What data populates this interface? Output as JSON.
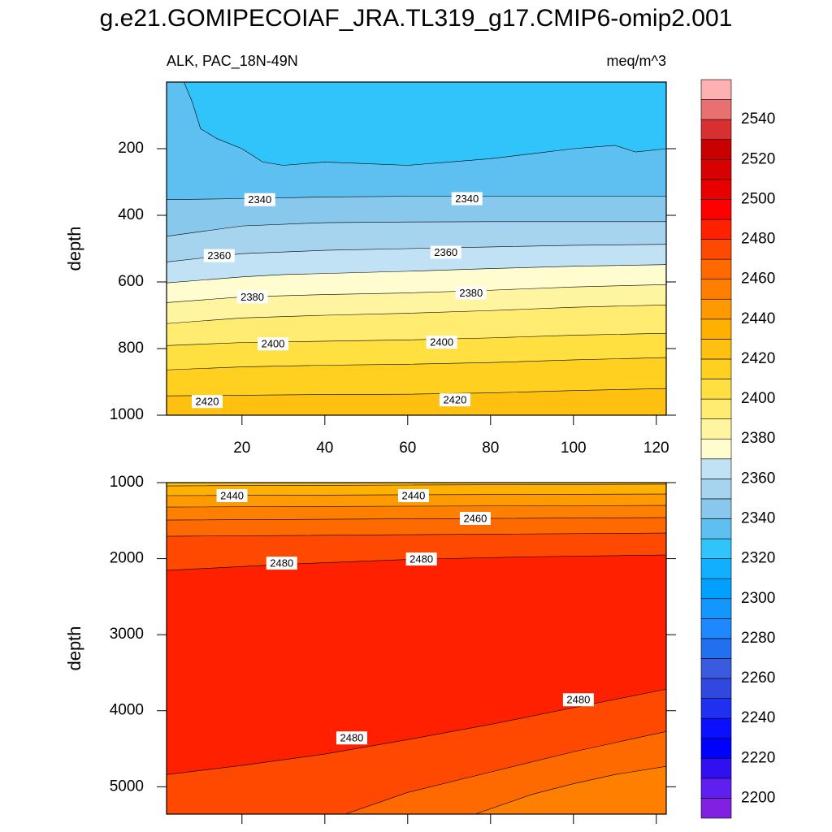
{
  "chart_data": [
    {
      "type": "contour",
      "title": "g.e21.GOMIPECOIAF_JRA.TL319_g17.CMIP6-omip2.001",
      "left_subtitle": "ALK, PAC_18N-49N",
      "right_subtitle": "meq/m^3",
      "y_label": "depth",
      "xlim": [
        1.8,
        122.4
      ],
      "xticks": [
        20,
        40,
        60,
        80,
        100,
        120
      ],
      "show_xtick_labels": true,
      "ylim": [
        1000,
        0
      ],
      "yticks": [
        200,
        400,
        600,
        800,
        1000
      ],
      "contours": [
        {
          "level": 2330,
          "x": [
            1.8,
            6,
            8,
            10,
            14,
            20,
            25,
            30,
            40,
            50,
            60,
            70,
            80,
            90,
            100,
            110,
            115,
            122.4
          ],
          "depth": [
            0,
            0,
            60,
            140,
            170,
            200,
            240,
            250,
            240,
            245,
            250,
            240,
            230,
            215,
            200,
            190,
            210,
            200
          ]
        },
        {
          "level": 2340,
          "x": [
            1.8,
            20,
            40,
            60,
            80,
            100,
            122.4
          ],
          "depth": [
            353,
            350,
            345,
            343,
            343,
            343,
            343
          ]
        },
        {
          "level": 2350,
          "x": [
            1.8,
            20,
            40,
            60,
            80,
            100,
            122.4
          ],
          "depth": [
            463,
            432,
            422,
            420,
            419,
            419,
            419
          ]
        },
        {
          "level": 2360,
          "x": [
            1.8,
            20,
            40,
            60,
            80,
            100,
            122.4
          ],
          "depth": [
            540,
            515,
            505,
            500,
            495,
            490,
            487
          ]
        },
        {
          "level": 2370,
          "x": [
            1.8,
            20,
            30,
            60,
            80,
            100,
            122.4
          ],
          "depth": [
            603,
            585,
            578,
            568,
            560,
            553,
            548
          ]
        },
        {
          "level": 2380,
          "x": [
            1.8,
            20,
            40,
            60,
            80,
            100,
            122.4
          ],
          "depth": [
            662,
            645,
            638,
            633,
            625,
            615,
            608
          ]
        },
        {
          "level": 2390,
          "x": [
            1.8,
            20,
            40,
            60,
            80,
            100,
            122.4
          ],
          "depth": [
            725,
            708,
            700,
            694,
            686,
            676,
            669
          ]
        },
        {
          "level": 2400,
          "x": [
            1.8,
            20,
            40,
            60,
            80,
            100,
            122.4
          ],
          "depth": [
            791,
            782,
            778,
            774,
            768,
            760,
            754
          ]
        },
        {
          "level": 2410,
          "x": [
            1.8,
            20,
            40,
            60,
            80,
            100,
            122.4
          ],
          "depth": [
            864,
            855,
            850,
            847,
            842,
            834,
            827
          ]
        },
        {
          "level": 2420,
          "x": [
            1.8,
            20,
            40,
            60,
            80,
            100,
            122.4
          ],
          "depth": [
            942,
            940,
            938,
            937,
            933,
            926,
            920
          ]
        }
      ],
      "labels": [
        {
          "x": 24.3,
          "depth": 353,
          "value": 2340
        },
        {
          "x": 74.3,
          "depth": 350,
          "value": 2340
        },
        {
          "x": 14.5,
          "depth": 521,
          "value": 2360
        },
        {
          "x": 69.2,
          "depth": 511,
          "value": 2360
        },
        {
          "x": 22.5,
          "depth": 645,
          "value": 2380
        },
        {
          "x": 75.3,
          "depth": 633,
          "value": 2380
        },
        {
          "x": 27.5,
          "depth": 786,
          "value": 2400
        },
        {
          "x": 68.2,
          "depth": 781,
          "value": 2400
        },
        {
          "x": 11.6,
          "depth": 959,
          "value": 2420
        },
        {
          "x": 71.4,
          "depth": 954,
          "value": 2420
        }
      ],
      "colorbar": {
        "levels": [
          2200,
          2210,
          2220,
          2230,
          2240,
          2250,
          2260,
          2270,
          2280,
          2290,
          2300,
          2310,
          2320,
          2330,
          2340,
          2350,
          2360,
          2370,
          2380,
          2390,
          2400,
          2410,
          2420,
          2430,
          2440,
          2450,
          2460,
          2470,
          2480,
          2490,
          2500,
          2510,
          2520,
          2530,
          2540,
          2550
        ],
        "colors": [
          "#8020e0",
          "#5e1ff0",
          "#3010f0",
          "#0000ff",
          "#0a10ff",
          "#2030f0",
          "#3048e0",
          "#3a5ae0",
          "#2070f0",
          "#1e88ff",
          "#1496ff",
          "#00a0ff",
          "#10b0ff",
          "#30c4fa",
          "#5ec0f0",
          "#88c8ec",
          "#a6d4ef",
          "#c0e2f4",
          "#fffdd0",
          "#fff5a0",
          "#ffec70",
          "#ffe040",
          "#ffd020",
          "#ffc010",
          "#ffb000",
          "#ff9a00",
          "#ff8000",
          "#ff6a00",
          "#ff4800",
          "#ff2000",
          "#ff0000",
          "#e80000",
          "#d80000",
          "#c80000",
          "#d83030",
          "#e87070",
          "#ffb0b0"
        ],
        "ticks": [
          2200,
          2220,
          2240,
          2260,
          2280,
          2300,
          2320,
          2340,
          2360,
          2380,
          2400,
          2420,
          2440,
          2460,
          2480,
          2500,
          2520,
          2540
        ]
      }
    },
    {
      "type": "contour",
      "y_label": "depth",
      "xlim": [
        1.8,
        122.4
      ],
      "xticks": [
        20,
        40,
        60,
        80,
        100,
        120
      ],
      "show_xtick_labels": false,
      "ylim": [
        5360,
        1000
      ],
      "yticks": [
        1000,
        2000,
        3000,
        4000,
        5000
      ],
      "contours": [
        {
          "level": 2430,
          "x": [
            1.8,
            60,
            122.4
          ],
          "depth": [
            1043,
            1032,
            1021
          ]
        },
        {
          "level": 2440,
          "x": [
            1.8,
            60,
            122.4
          ],
          "depth": [
            1171,
            1160,
            1150
          ]
        },
        {
          "level": 2450,
          "x": [
            1.8,
            60,
            122.4
          ],
          "depth": [
            1321,
            1310,
            1300
          ]
        },
        {
          "level": 2460,
          "x": [
            1.8,
            60,
            122.4
          ],
          "depth": [
            1492,
            1476,
            1460
          ]
        },
        {
          "level": 2470,
          "x": [
            1.8,
            60,
            122.4
          ],
          "depth": [
            1706,
            1685,
            1663
          ]
        },
        {
          "level": 2480,
          "x": [
            1.8,
            30,
            60,
            90,
            122.4
          ],
          "depth": [
            2155,
            2075,
            2010,
            1975,
            1952
          ]
        },
        {
          "level": 2480,
          "x": [
            1.8,
            20,
            40,
            60,
            80,
            100,
            122.4
          ],
          "depth": [
            4840,
            4720,
            4570,
            4380,
            4180,
            3960,
            3717
          ]
        },
        {
          "level": 2470,
          "x": [
            44.9,
            60,
            80,
            100,
            122.4
          ],
          "depth": [
            5360,
            5075,
            4807,
            4540,
            4273
          ]
        },
        {
          "level": 2460,
          "x": [
            76.3,
            90,
            100,
            110,
            122.4
          ],
          "depth": [
            5360,
            5100,
            4960,
            4840,
            4732
          ]
        }
      ],
      "labels": [
        {
          "x": 17.6,
          "depth": 1171,
          "value": 2440
        },
        {
          "x": 61.4,
          "depth": 1171,
          "value": 2440
        },
        {
          "x": 76.3,
          "depth": 1470,
          "value": 2460
        },
        {
          "x": 29.6,
          "depth": 2059,
          "value": 2480
        },
        {
          "x": 63.3,
          "depth": 2005,
          "value": 2480
        },
        {
          "x": 101.2,
          "depth": 3856,
          "value": 2480
        },
        {
          "x": 46.5,
          "depth": 4358,
          "value": 2480
        }
      ]
    }
  ]
}
